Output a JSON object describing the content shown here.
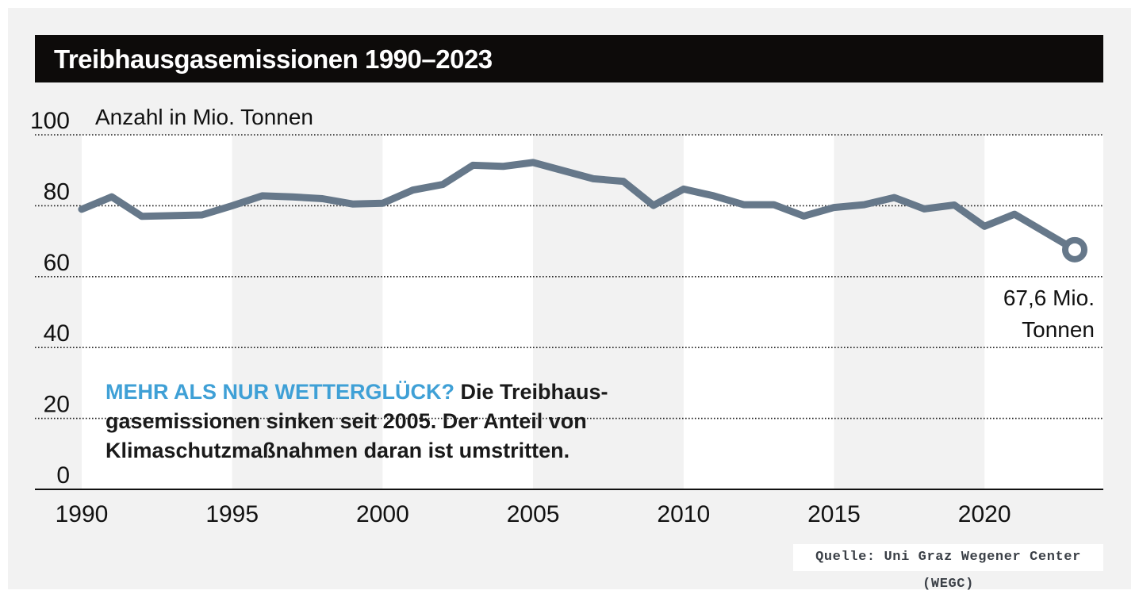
{
  "title": "Treibhausgasemissionen 1990–2023",
  "colors": {
    "line": "#66788a",
    "accent": "#3fa0d6",
    "band_light": "#ffffff",
    "band_dark": "#f2f2f2",
    "title_bg": "#0d0b0a"
  },
  "annotation": {
    "highlight": "MEHR ALS NUR WETTERGLÜCK?",
    "text": "Die Treibhaus-gasemissionen sinken seit 2005. Der Anteil von Klimaschutzmaßnahmen daran ist umstritten."
  },
  "end_label": {
    "line1": "67,6 Mio.",
    "line2": "Tonnen"
  },
  "source": "Quelle: Uni Graz Wegener Center (WEGC)",
  "chart_data": {
    "type": "line",
    "title": "Treibhausgasemissionen 1990–2023",
    "ylabel": "Anzahl in Mio. Tonnen",
    "xlabel": "",
    "ylim": [
      0,
      100
    ],
    "xlim": [
      1990,
      2023
    ],
    "yticks": [
      0,
      20,
      40,
      60,
      80,
      100
    ],
    "xticks": [
      1990,
      1995,
      2000,
      2005,
      2010,
      2015,
      2020
    ],
    "grid": "horizontal dotted",
    "series": [
      {
        "x": [
          1990,
          1991,
          1992,
          1993,
          1994,
          1995,
          1996,
          1997,
          1998,
          1999,
          2000,
          2001,
          2002,
          2003,
          2004,
          2005,
          2006,
          2007,
          2008,
          2009,
          2010,
          2011,
          2012,
          2013,
          2014,
          2015,
          2016,
          2017,
          2018,
          2019,
          2020,
          2021,
          2022,
          2023
        ],
        "values": [
          79.0,
          82.5,
          77.0,
          77.2,
          77.4,
          80.0,
          82.8,
          82.5,
          82.0,
          80.5,
          80.7,
          84.4,
          86.0,
          91.4,
          91.1,
          92.2,
          89.9,
          87.6,
          86.9,
          80.1,
          84.7,
          82.8,
          80.3,
          80.3,
          77.1,
          79.5,
          80.3,
          82.3,
          79.1,
          80.2,
          74.2,
          77.6,
          72.6,
          67.6
        ],
        "end_marker": true
      }
    ]
  }
}
